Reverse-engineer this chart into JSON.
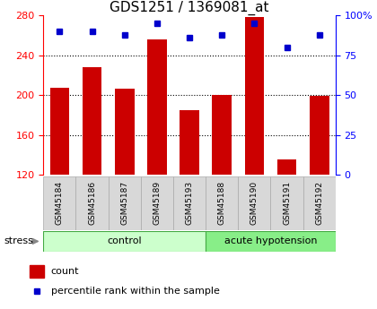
{
  "title": "GDS1251 / 1369081_at",
  "samples": [
    "GSM45184",
    "GSM45186",
    "GSM45187",
    "GSM45189",
    "GSM45193",
    "GSM45188",
    "GSM45190",
    "GSM45191",
    "GSM45192"
  ],
  "counts": [
    207,
    228,
    206,
    256,
    185,
    200,
    278,
    135,
    199
  ],
  "percentiles": [
    90,
    90,
    88,
    95,
    86,
    88,
    95,
    80,
    88
  ],
  "groups": [
    {
      "label": "control",
      "start": 0,
      "end": 5,
      "color": "#ccffcc"
    },
    {
      "label": "acute hypotension",
      "start": 5,
      "end": 9,
      "color": "#88ee88"
    }
  ],
  "stress_label": "stress",
  "ymin": 120,
  "ymax": 280,
  "yticks": [
    120,
    160,
    200,
    240,
    280
  ],
  "y2min": 0,
  "y2max": 100,
  "y2ticks": [
    0,
    25,
    50,
    75,
    100
  ],
  "bar_color": "#cc0000",
  "dot_color": "#0000cc",
  "bar_width": 0.6,
  "legend_count_label": "count",
  "legend_pct_label": "percentile rank within the sample",
  "title_fontsize": 11,
  "tick_fontsize": 8,
  "group_fontsize": 8,
  "sample_fontsize": 6.5
}
